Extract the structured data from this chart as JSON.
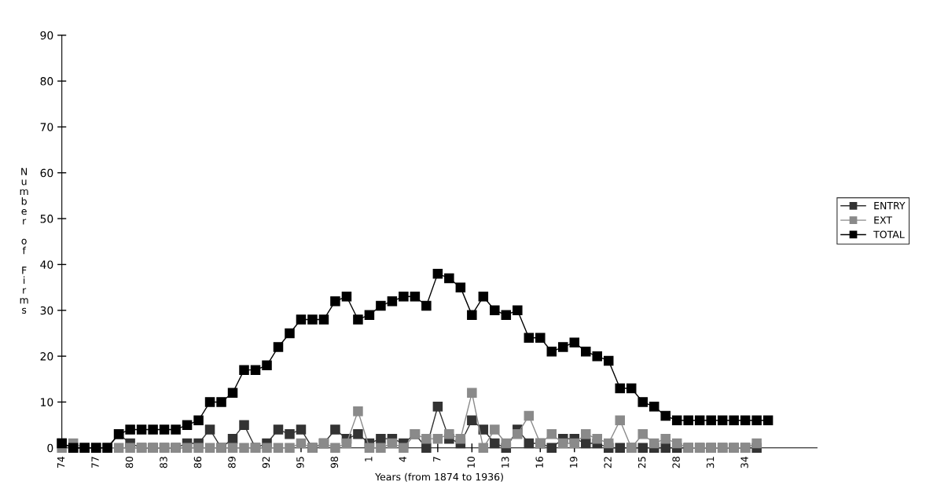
{
  "chart_data": {
    "type": "line",
    "xlabel": "Years (from 1874 to 1936)",
    "ylabel": "Number of Firms",
    "categories": [
      "74",
      null,
      null,
      "77",
      null,
      null,
      "80",
      null,
      null,
      "83",
      null,
      null,
      "86",
      null,
      null,
      "89",
      null,
      null,
      "92",
      null,
      null,
      "95",
      null,
      null,
      "98",
      null,
      null,
      "1",
      null,
      null,
      "4",
      null,
      null,
      "7",
      null,
      null,
      "10",
      null,
      null,
      "13",
      null,
      null,
      "16",
      null,
      null,
      "19",
      null,
      null,
      "22",
      null,
      null,
      "25",
      null,
      null,
      "28",
      null,
      null,
      "31",
      null,
      null,
      "34",
      null,
      null,
      null,
      null,
      null,
      null
    ],
    "series": [
      {
        "name": "ENTRY",
        "color": "#333333",
        "values": [
          1,
          0,
          0,
          0,
          0,
          3,
          1,
          0,
          0,
          0,
          0,
          1,
          1,
          4,
          0,
          2,
          5,
          0,
          1,
          4,
          3,
          4,
          0,
          1,
          4,
          2,
          3,
          1,
          2,
          2,
          1,
          3,
          0,
          9,
          2,
          1,
          6,
          4,
          1,
          0,
          4,
          1,
          1,
          0,
          2,
          2,
          1,
          1,
          0,
          0,
          0,
          0,
          0,
          0,
          0,
          0,
          0,
          0,
          0,
          0,
          0,
          0,
          null,
          null,
          null,
          null,
          null
        ]
      },
      {
        "name": "EXT",
        "color": "#8a8a8a",
        "values": [
          0,
          1,
          0,
          0,
          0,
          0,
          0,
          0,
          0,
          0,
          0,
          0,
          0,
          0,
          0,
          0,
          0,
          0,
          0,
          0,
          0,
          1,
          0,
          1,
          0,
          1,
          8,
          0,
          0,
          1,
          0,
          3,
          2,
          2,
          3,
          2,
          12,
          0,
          4,
          1,
          3,
          7,
          1,
          3,
          1,
          1,
          3,
          2,
          1,
          6,
          0,
          3,
          1,
          2,
          1,
          0,
          0,
          0,
          0,
          0,
          0,
          1,
          null,
          null,
          null,
          null,
          null
        ]
      },
      {
        "name": "TOTAL",
        "color": "#000000",
        "values": [
          1,
          0,
          0,
          0,
          0,
          3,
          4,
          4,
          4,
          4,
          4,
          5,
          6,
          10,
          10,
          12,
          17,
          17,
          18,
          22,
          25,
          28,
          28,
          28,
          32,
          33,
          28,
          29,
          31,
          32,
          33,
          33,
          31,
          38,
          37,
          35,
          29,
          33,
          30,
          29,
          30,
          24,
          24,
          21,
          22,
          23,
          21,
          20,
          19,
          13,
          13,
          10,
          9,
          7,
          6,
          6,
          6,
          6,
          6,
          6,
          6,
          6,
          6,
          null,
          null,
          null,
          null
        ]
      }
    ],
    "ylim": [
      0,
      90
    ],
    "yticks": [
      0,
      10,
      20,
      30,
      40,
      50,
      60,
      70,
      80,
      90
    ],
    "grid": false,
    "legend": "right",
    "marker": "square",
    "line_style": "solid"
  }
}
